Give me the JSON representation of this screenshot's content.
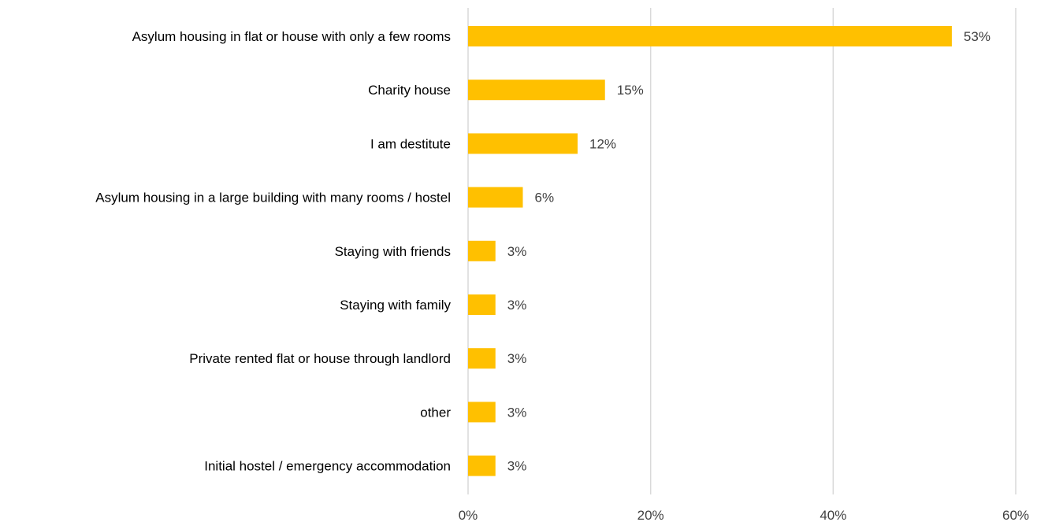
{
  "chart_data": {
    "type": "bar",
    "orientation": "horizontal",
    "title": "",
    "xlabel": "",
    "ylabel": "",
    "categories": [
      "Asylum housing in flat or house with only a few rooms",
      "Charity house",
      "I am destitute",
      "Asylum housing in a large building with many rooms / hostel",
      "Staying with friends",
      "Staying with family",
      "Private rented flat or house through landlord",
      "other",
      "Initial hostel / emergency accommodation"
    ],
    "values": [
      53,
      15,
      12,
      6,
      3,
      3,
      3,
      3,
      3
    ],
    "value_labels": [
      "53%",
      "15%",
      "12%",
      "6%",
      "3%",
      "3%",
      "3%",
      "3%",
      "3%"
    ],
    "xlim": [
      0,
      60
    ],
    "x_ticks": [
      0,
      20,
      40,
      60
    ],
    "x_tick_labels": [
      "0%",
      "20%",
      "40%",
      "60%"
    ],
    "grid": true,
    "legend": "none",
    "bar_color": "#FFC000"
  }
}
